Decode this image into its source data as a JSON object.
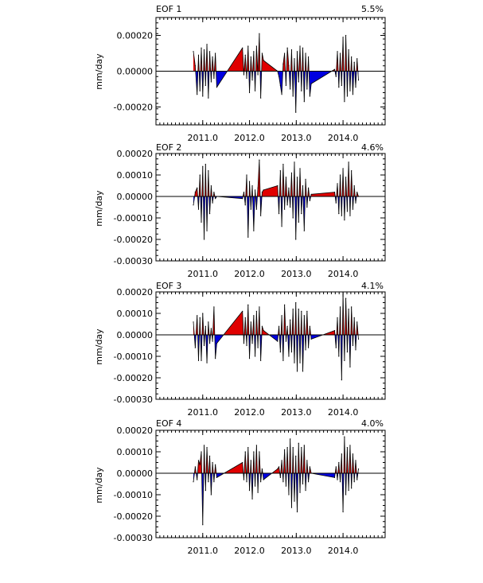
{
  "chart_data": [
    {
      "type": "area",
      "title": "EOF 1",
      "variance": "5.5%",
      "ylabel": "mm/day",
      "ylim": [
        -0.0003,
        0.0003
      ],
      "xlim": [
        2010.0,
        2014.9
      ],
      "yticks": [
        0.0002,
        0.0,
        -0.0002
      ],
      "yticklabels": [
        "0.00020",
        "0.00000",
        "-0.00020"
      ],
      "xticks": [
        2011.0,
        2012.0,
        2013.0,
        2014.0
      ],
      "xticklabels": [
        "2011.0",
        "2012.0",
        "2013.0",
        "2014.0"
      ],
      "fill_colors": {
        "positive": "#e00000",
        "negative": "#0000e0"
      },
      "x": [
        2010.8,
        2010.84,
        2010.88,
        2010.91,
        2010.94,
        2010.97,
        2011.0,
        2011.03,
        2011.06,
        2011.09,
        2011.12,
        2011.15,
        2011.18,
        2011.21,
        2011.24,
        2011.27,
        2011.3,
        2011.85,
        2011.88,
        2011.91,
        2011.94,
        2011.97,
        2012.0,
        2012.03,
        2012.06,
        2012.09,
        2012.12,
        2012.15,
        2012.18,
        2012.21,
        2012.24,
        2012.27,
        2012.3,
        2012.6,
        2012.63,
        2012.66,
        2012.69,
        2012.72,
        2012.75,
        2012.78,
        2012.81,
        2012.84,
        2012.87,
        2012.9,
        2012.93,
        2012.96,
        2012.99,
        2013.02,
        2013.05,
        2013.08,
        2013.11,
        2013.14,
        2013.17,
        2013.2,
        2013.23,
        2013.26,
        2013.29,
        2013.32,
        2013.82,
        2013.85,
        2013.88,
        2013.91,
        2013.94,
        2013.97,
        2014.0,
        2014.03,
        2014.06,
        2014.09,
        2014.12,
        2014.15,
        2014.18,
        2014.21,
        2014.24,
        2014.27,
        2014.3,
        2014.33
      ],
      "values": [
        0.00011,
        3e-05,
        -0.00013,
        9e-05,
        -0.00011,
        0.00013,
        -0.00014,
        0.00012,
        -8e-05,
        0.00015,
        -0.00015,
        0.00011,
        -6e-05,
        8e-05,
        -4e-05,
        0.0001,
        -9e-05,
        0.00013,
        -2e-05,
        9e-05,
        -4e-05,
        0.00014,
        -0.00012,
        8e-05,
        -5e-05,
        0.00011,
        -0.00011,
        0.00014,
        -2e-05,
        0.00021,
        -0.00015,
        0.0001,
        6e-05,
        0.0,
        -3e-05,
        -8e-05,
        -0.00013,
        4e-05,
        0.0001,
        -8e-05,
        0.00013,
        3e-05,
        -0.0001,
        0.00012,
        -0.00014,
        7e-05,
        -0.00023,
        0.00011,
        -6e-05,
        0.00014,
        -0.00011,
        0.00013,
        -0.00017,
        0.0001,
        -0.0001,
        8e-05,
        -0.00014,
        -7e-05,
        1e-05,
        -3e-05,
        0.00011,
        -9e-05,
        0.0001,
        -8e-05,
        0.00019,
        -0.00017,
        0.0002,
        -0.00014,
        0.00012,
        -0.00011,
        8e-05,
        -0.00013,
        5e-05,
        -9e-05,
        7e-05,
        -5e-05
      ]
    },
    {
      "type": "area",
      "title": "EOF 2",
      "variance": "4.6%",
      "ylabel": "mm/day",
      "ylim": [
        -0.0003,
        0.0002
      ],
      "xlim": [
        2010.0,
        2014.9
      ],
      "yticks": [
        0.0002,
        0.0001,
        0.0,
        -0.0001,
        -0.0002,
        -0.0003
      ],
      "yticklabels": [
        "0.00020",
        "0.00010",
        "0.00000",
        "-0.00010",
        "-0.00020",
        "-0.00030"
      ],
      "xticks": [
        2011.0,
        2012.0,
        2013.0,
        2014.0
      ],
      "xticklabels": [
        "2011.0",
        "2012.0",
        "2013.0",
        "2014.0"
      ],
      "fill_colors": {
        "positive": "#e00000",
        "negative": "#0000e0"
      },
      "x": [
        2010.8,
        2010.84,
        2010.88,
        2010.91,
        2010.94,
        2010.97,
        2011.0,
        2011.03,
        2011.06,
        2011.09,
        2011.12,
        2011.15,
        2011.18,
        2011.21,
        2011.24,
        2011.27,
        2011.3,
        2011.85,
        2011.88,
        2011.91,
        2011.94,
        2011.97,
        2012.0,
        2012.03,
        2012.06,
        2012.09,
        2012.12,
        2012.15,
        2012.18,
        2012.21,
        2012.24,
        2012.27,
        2012.3,
        2012.6,
        2012.63,
        2012.66,
        2012.69,
        2012.72,
        2012.75,
        2012.78,
        2012.81,
        2012.84,
        2012.87,
        2012.9,
        2012.93,
        2012.96,
        2012.99,
        2013.02,
        2013.05,
        2013.08,
        2013.11,
        2013.14,
        2013.17,
        2013.2,
        2013.23,
        2013.26,
        2013.29,
        2013.32,
        2013.82,
        2013.85,
        2013.88,
        2013.91,
        2013.94,
        2013.97,
        2014.0,
        2014.03,
        2014.06,
        2014.09,
        2014.12,
        2014.15,
        2014.18,
        2014.21,
        2014.24,
        2014.27,
        2014.3,
        2014.33
      ],
      "values": [
        -4e-05,
        2e-05,
        4e-05,
        -6e-05,
        0.0001,
        -0.00012,
        0.00014,
        -0.0002,
        0.00015,
        -0.00016,
        0.00012,
        -8e-05,
        5e-05,
        -3e-05,
        2e-05,
        -1e-05,
        0.0,
        -1e-05,
        2e-05,
        -4e-05,
        0.0001,
        -0.00019,
        7e-05,
        -6e-05,
        5e-05,
        -0.00016,
        3e-05,
        -6e-05,
        4e-05,
        0.00017,
        -9e-05,
        2e-05,
        3e-05,
        5e-05,
        -8e-05,
        0.00012,
        -0.00014,
        0.00015,
        -6e-05,
        9e-05,
        -4e-05,
        4e-05,
        -5e-05,
        0.00011,
        -0.0001,
        0.00016,
        -0.0002,
        9e-05,
        -0.00012,
        0.00013,
        -8e-05,
        5e-05,
        -0.00016,
        8e-05,
        -5e-05,
        4e-05,
        -2e-05,
        1e-05,
        2e-05,
        -3e-05,
        6e-05,
        -8e-05,
        0.0001,
        -9e-05,
        0.00013,
        -0.00011,
        9e-05,
        -7e-05,
        0.00016,
        -9e-05,
        0.00012,
        -6e-05,
        5e-05,
        -3e-05,
        2e-05,
        0.0
      ]
    },
    {
      "type": "area",
      "title": "EOF 3",
      "variance": "4.1%",
      "ylabel": "mm/day",
      "ylim": [
        -0.0003,
        0.0002
      ],
      "xlim": [
        2010.0,
        2014.9
      ],
      "yticks": [
        0.0002,
        0.0001,
        0.0,
        -0.0001,
        -0.0002,
        -0.0003
      ],
      "yticklabels": [
        "0.00020",
        "0.00010",
        "0.00000",
        "-0.00010",
        "-0.00020",
        "-0.00030"
      ],
      "xticks": [
        2011.0,
        2012.0,
        2013.0,
        2014.0
      ],
      "xticklabels": [
        "2011.0",
        "2012.0",
        "2013.0",
        "2014.0"
      ],
      "fill_colors": {
        "positive": "#e00000",
        "negative": "#0000e0"
      },
      "x": [
        2010.8,
        2010.84,
        2010.88,
        2010.91,
        2010.94,
        2010.97,
        2011.0,
        2011.03,
        2011.06,
        2011.09,
        2011.12,
        2011.15,
        2011.18,
        2011.21,
        2011.24,
        2011.27,
        2011.3,
        2011.85,
        2011.88,
        2011.91,
        2011.94,
        2011.97,
        2012.0,
        2012.03,
        2012.06,
        2012.09,
        2012.12,
        2012.15,
        2012.18,
        2012.21,
        2012.24,
        2012.27,
        2012.3,
        2012.6,
        2012.63,
        2012.66,
        2012.69,
        2012.72,
        2012.75,
        2012.78,
        2012.81,
        2012.84,
        2012.87,
        2012.9,
        2012.93,
        2012.96,
        2012.99,
        2013.02,
        2013.05,
        2013.08,
        2013.11,
        2013.14,
        2013.17,
        2013.2,
        2013.23,
        2013.26,
        2013.29,
        2013.32,
        2013.82,
        2013.85,
        2013.88,
        2013.91,
        2013.94,
        2013.97,
        2014.0,
        2014.03,
        2014.06,
        2014.09,
        2014.12,
        2014.15,
        2014.18,
        2014.21,
        2014.24,
        2014.27,
        2014.3,
        2014.33
      ],
      "values": [
        6e-05,
        -6e-05,
        9e-05,
        -0.00012,
        8e-05,
        -0.00012,
        0.0001,
        -5e-05,
        4e-05,
        -0.00013,
        6e-05,
        -4e-05,
        3e-05,
        -3e-05,
        0.00013,
        -0.00011,
        -4e-05,
        0.00011,
        -4e-05,
        8e-05,
        -5e-05,
        0.00014,
        -0.00011,
        6e-05,
        -4e-05,
        9e-05,
        -0.0001,
        0.00011,
        -6e-05,
        0.00013,
        -0.00012,
        4e-05,
        2e-05,
        -3e-05,
        4e-05,
        -8e-05,
        9e-05,
        -0.00012,
        0.00014,
        -3e-05,
        4e-05,
        -0.0001,
        7e-05,
        -8e-05,
        0.00012,
        -0.00013,
        0.00015,
        -0.00017,
        0.00012,
        -0.00013,
        0.00011,
        -0.00017,
        9e-05,
        -7e-05,
        0.00011,
        -6e-05,
        4e-05,
        -2e-05,
        2e-05,
        -6e-05,
        8e-05,
        -0.0001,
        0.00013,
        -0.00021,
        0.00019,
        -0.00012,
        0.00017,
        -8e-05,
        0.00012,
        -0.00015,
        0.00013,
        -5e-05,
        8e-05,
        -7e-05,
        6e-05,
        -2e-05
      ]
    },
    {
      "type": "area",
      "title": "EOF 4",
      "variance": "4.0%",
      "ylabel": "mm/day",
      "ylim": [
        -0.0003,
        0.0002
      ],
      "xlim": [
        2010.0,
        2014.9
      ],
      "yticks": [
        0.0002,
        0.0001,
        0.0,
        -0.0001,
        -0.0002,
        -0.0003
      ],
      "yticklabels": [
        "0.00020",
        "0.00010",
        "0.00000",
        "-0.00010",
        "-0.00020",
        "-0.00030"
      ],
      "xticks": [
        2011.0,
        2012.0,
        2013.0,
        2014.0
      ],
      "xticklabels": [
        "2011.0",
        "2012.0",
        "2013.0",
        "2014.0"
      ],
      "fill_colors": {
        "positive": "#e00000",
        "negative": "#0000e0"
      },
      "x": [
        2010.8,
        2010.84,
        2010.88,
        2010.91,
        2010.94,
        2010.97,
        2011.0,
        2011.03,
        2011.06,
        2011.09,
        2011.12,
        2011.15,
        2011.18,
        2011.21,
        2011.24,
        2011.27,
        2011.3,
        2011.85,
        2011.88,
        2011.91,
        2011.94,
        2011.97,
        2012.0,
        2012.03,
        2012.06,
        2012.09,
        2012.12,
        2012.15,
        2012.18,
        2012.21,
        2012.24,
        2012.27,
        2012.3,
        2012.6,
        2012.63,
        2012.66,
        2012.69,
        2012.72,
        2012.75,
        2012.78,
        2012.81,
        2012.84,
        2012.87,
        2012.9,
        2012.93,
        2012.96,
        2012.99,
        2013.02,
        2013.05,
        2013.08,
        2013.11,
        2013.14,
        2013.17,
        2013.2,
        2013.23,
        2013.26,
        2013.29,
        2013.32,
        2013.82,
        2013.85,
        2013.88,
        2013.91,
        2013.94,
        2013.97,
        2014.0,
        2014.03,
        2014.06,
        2014.09,
        2014.12,
        2014.15,
        2014.18,
        2014.21,
        2014.24,
        2014.27,
        2014.3,
        2014.33
      ],
      "values": [
        -4e-05,
        3e-05,
        -3e-05,
        6e-05,
        4e-05,
        0.0001,
        -0.00024,
        0.00013,
        -8e-05,
        0.00012,
        -4e-05,
        8e-05,
        -0.0001,
        5e-05,
        -4e-05,
        4e-05,
        -2e-05,
        5e-05,
        -3e-05,
        0.0001,
        -4e-05,
        0.00012,
        -8e-05,
        6e-05,
        -0.00012,
        0.0001,
        -6e-05,
        0.00013,
        -9e-05,
        0.0001,
        -4e-05,
        2e-05,
        -3e-05,
        2e-05,
        3e-05,
        -2e-05,
        6e-05,
        -4e-05,
        0.00011,
        -6e-05,
        0.00012,
        -0.0001,
        0.00016,
        -0.00016,
        0.00012,
        -0.00013,
        8e-05,
        -0.00018,
        0.00014,
        -9e-05,
        0.00012,
        -5e-05,
        0.00013,
        -8e-05,
        6e-05,
        -4e-05,
        3e-05,
        0.0,
        -2e-05,
        3e-05,
        -3e-05,
        5e-05,
        -4e-05,
        9e-05,
        -0.00018,
        0.00017,
        -0.0001,
        0.00012,
        -8e-05,
        0.00013,
        -7e-05,
        9e-05,
        -4e-05,
        6e-05,
        -3e-05,
        2e-05
      ]
    }
  ]
}
